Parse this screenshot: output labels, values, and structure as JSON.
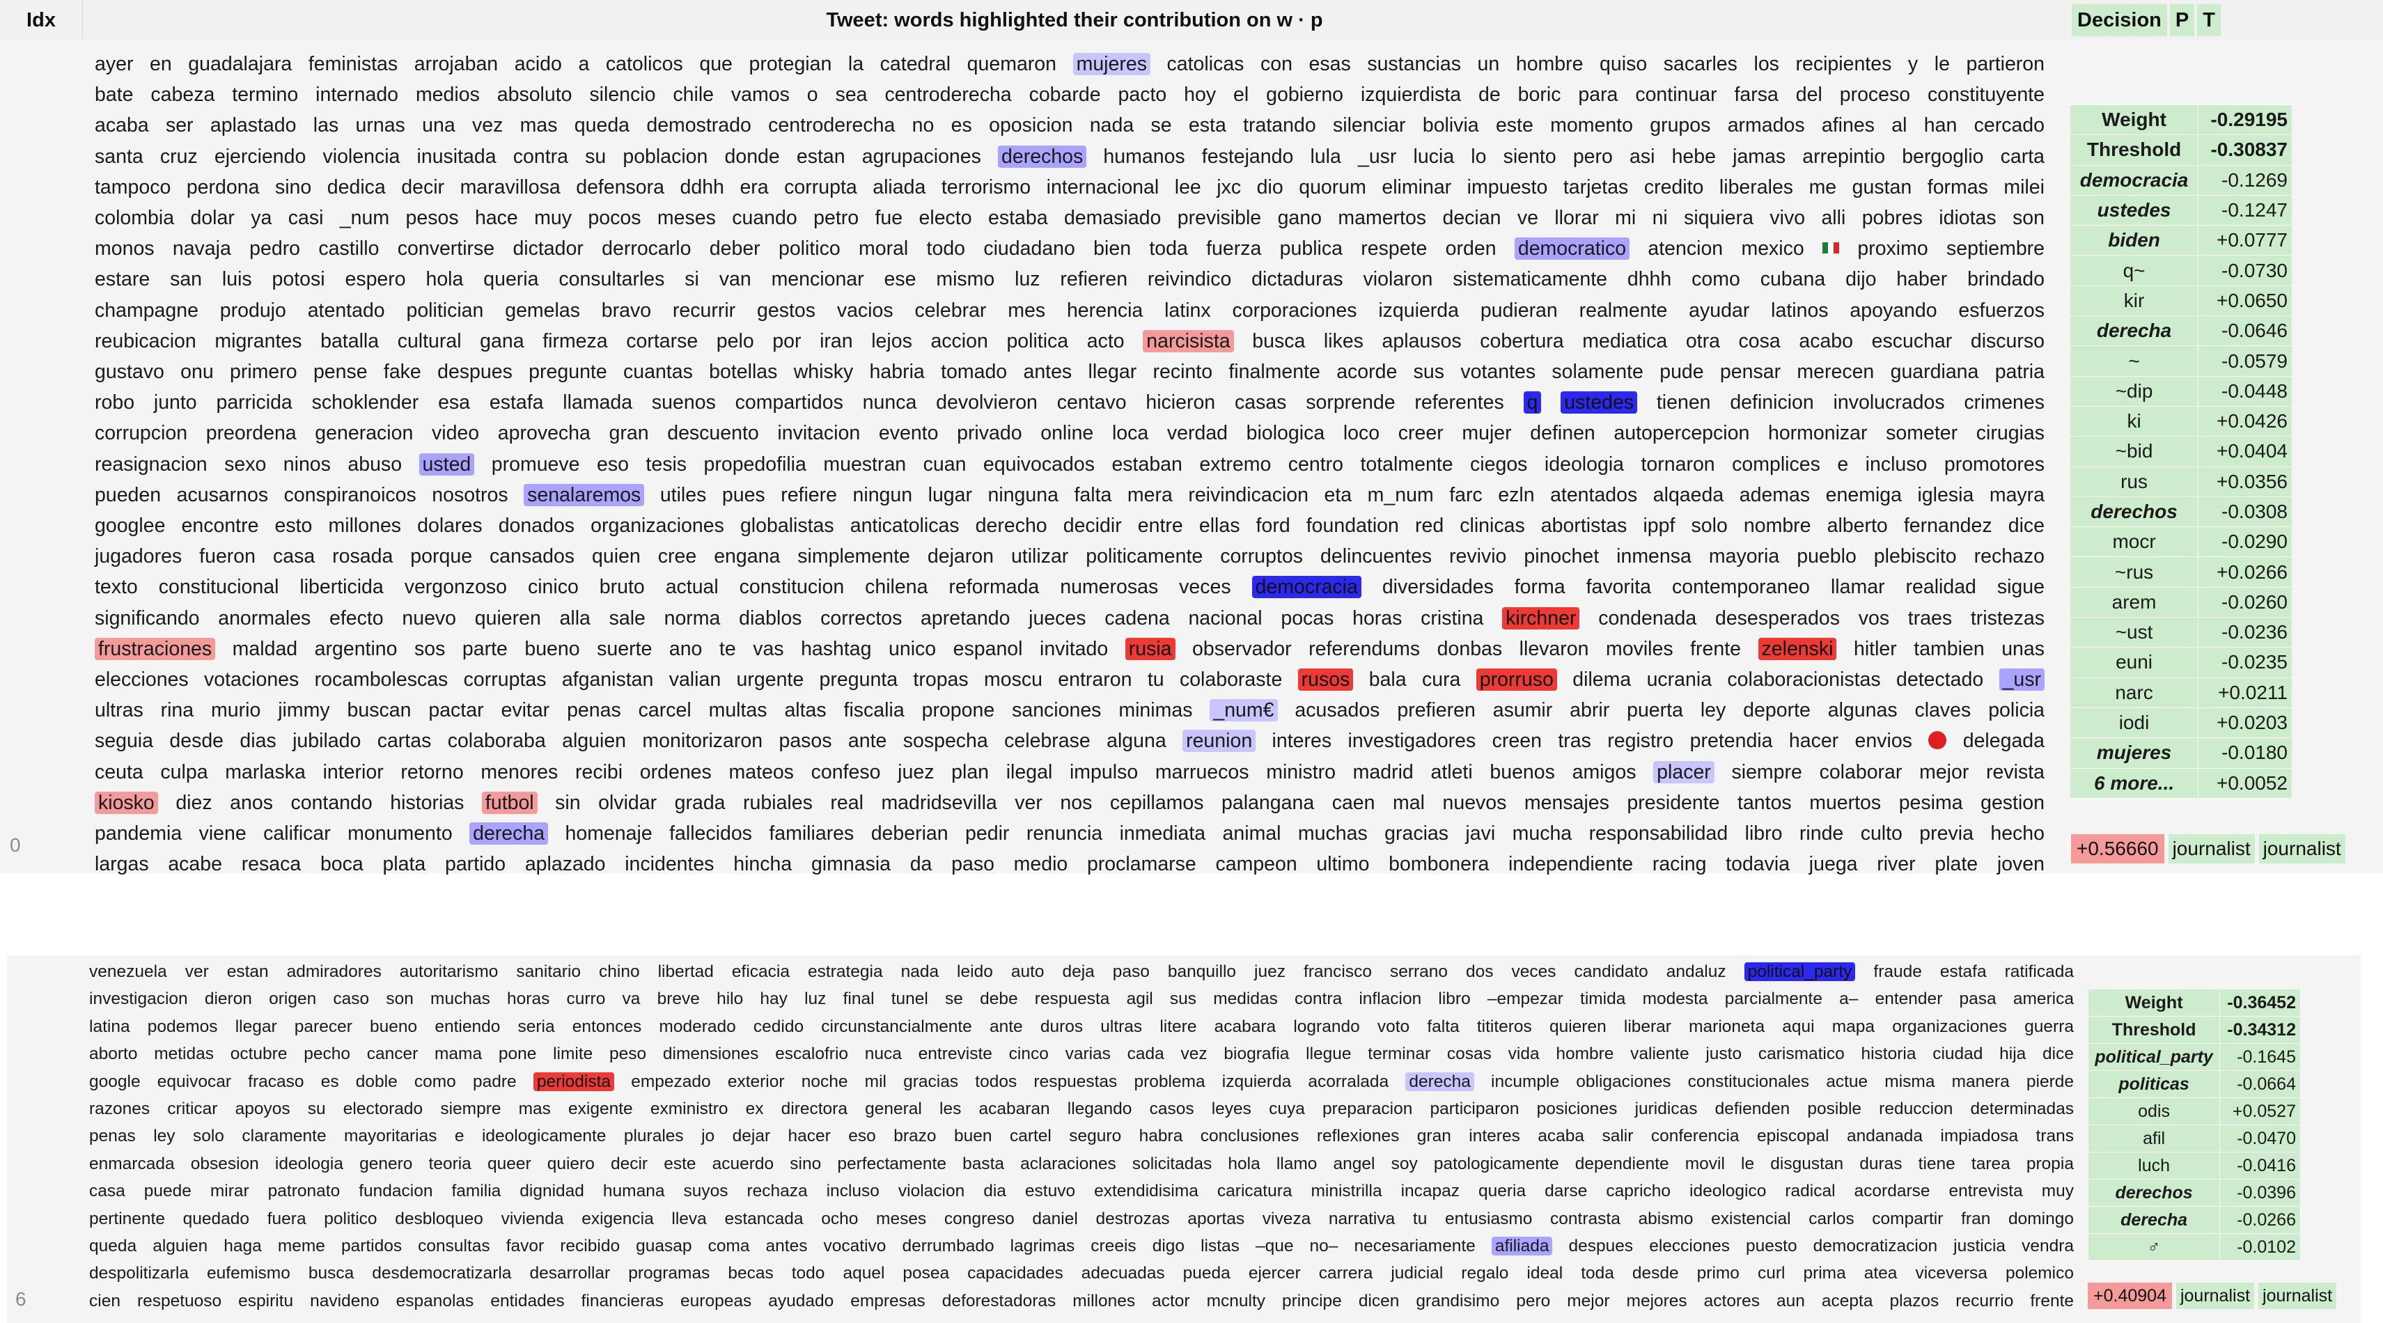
{
  "header": {
    "idx": "Idx",
    "title": "Tweet: words highlighted their contribution on w · p",
    "decision": "Decision",
    "p": "P",
    "t": "T"
  },
  "rows": [
    {
      "idx": "0",
      "lines": [
        [
          [
            "ayer en guadalajara feministas arrojaban acido a catolicos que protegian la catedral quemaron ",
            ""
          ],
          [
            "mujeres",
            "neg1"
          ],
          [
            " catolicas con esas sustancias un hombre quiso sacarles los recipientes y le partieron",
            ""
          ]
        ],
        [
          [
            "bate cabeza termino internado medios absoluto silencio chile vamos o sea centroderecha cobarde pacto hoy el gobierno izquierdista de boric para continuar farsa del proceso constituyente",
            ""
          ]
        ],
        [
          [
            "acaba ser aplastado las urnas una vez mas queda demostrado centroderecha no es oposicion nada se esta tratando silenciar bolivia este momento grupos armados afines al han cercado",
            ""
          ]
        ],
        [
          [
            "santa cruz ejerciendo violencia inusitada contra su poblacion donde estan agrupaciones ",
            ""
          ],
          [
            "derechos",
            "neg2"
          ],
          [
            " humanos festejando lula _usr lucia lo siento pero asi hebe jamas arrepintio bergoglio carta",
            ""
          ]
        ],
        [
          [
            "tampoco perdona sino dedica decir maravillosa defensora ddhh era corrupta aliada terrorismo internacional lee jxc dio quorum eliminar impuesto tarjetas credito liberales me gustan formas milei",
            ""
          ]
        ],
        [
          [
            "colombia dolar ya casi _num pesos hace muy pocos meses cuando petro fue electo estaba demasiado previsible gano mamertos decian ve llorar mi ni siquiera vivo alli pobres idiotas son",
            ""
          ]
        ],
        [
          [
            "monos navaja pedro castillo convertirse dictador derrocarlo deber politico moral todo ciudadano bien toda fuerza publica respete orden ",
            ""
          ],
          [
            "democratico",
            "neg2"
          ],
          [
            " atencion mexico ",
            ""
          ],
          [
            "",
            "flag"
          ],
          [
            " proximo septiembre",
            ""
          ]
        ],
        [
          [
            "estare san luis potosi espero hola queria consultarles si van mencionar ese mismo luz refieren reivindico dictaduras violaron sistematicamente dhhh como cubana dijo haber brindado",
            ""
          ]
        ],
        [
          [
            "champagne produjo atentado politician gemelas bravo recurrir gestos vacios celebrar mes herencia latinx corporaciones izquierda pudieran realmente ayudar latinos apoyando esfuerzos",
            ""
          ]
        ],
        [
          [
            "reubicacion migrantes batalla cultural gana firmeza cortarse pelo por iran lejos accion politica acto ",
            ""
          ],
          [
            "narcisista",
            "pos2"
          ],
          [
            " busca likes aplausos cobertura mediatica otra cosa acabo escuchar discurso",
            ""
          ]
        ],
        [
          [
            "gustavo onu primero pense fake despues pregunte cuantas botellas whisky habria tomado antes llegar recinto finalmente acorde sus votantes solamente pude pensar merecen guardiana patria",
            ""
          ]
        ],
        [
          [
            "robo junto parricida schoklender esa estafa llamada suenos compartidos nunca devolvieron centavo hicieron casas sorprende referentes ",
            ""
          ],
          [
            "q",
            "neg3"
          ],
          [
            " ",
            ""
          ],
          [
            "ustedes",
            "neg3"
          ],
          [
            " tienen definicion involucrados crimenes",
            ""
          ]
        ],
        [
          [
            "corrupcion preordena generacion video aprovecha gran descuento invitacion evento privado online loca verdad biologica loco creer mujer definen autopercepcion hormonizar someter cirugias",
            ""
          ]
        ],
        [
          [
            "reasignacion sexo ninos abuso ",
            ""
          ],
          [
            "usted",
            "neg2"
          ],
          [
            " promueve eso tesis propedofilia muestran cuan equivocados estaban extremo centro totalmente ciegos ideologia tornaron complices e incluso promotores",
            ""
          ]
        ],
        [
          [
            "pueden acusarnos conspiranoicos nosotros ",
            ""
          ],
          [
            "senalaremos",
            "neg2"
          ],
          [
            " utiles pues refiere ningun lugar ninguna falta mera reivindicacion eta m_num farc ezln atentados alqaeda ademas enemiga iglesia mayra",
            ""
          ]
        ],
        [
          [
            "googlee encontre esto millones dolares donados organizaciones globalistas anticatolicas derecho decidir entre ellas ford foundation red clinicas abortistas ippf solo nombre alberto fernandez dice",
            ""
          ]
        ],
        [
          [
            "jugadores fueron casa rosada porque cansados quien cree engana simplemente dejaron utilizar politicamente corruptos delincuentes revivio pinochet inmensa mayoria pueblo plebiscito rechazo",
            ""
          ]
        ],
        [
          [
            "texto constitucional liberticida vergonzoso cinico bruto actual constitucion chilena reformada numerosas veces ",
            ""
          ],
          [
            "democracia",
            "neg3"
          ],
          [
            " diversidades forma favorita contemporaneo llamar realidad sigue",
            ""
          ]
        ],
        [
          [
            "significando anormales efecto nuevo quieren alla sale norma diablos correctos apretando jueces cadena nacional pocas horas cristina ",
            ""
          ],
          [
            "kirchner",
            "pos3"
          ],
          [
            " condenada desesperados vos traes tristezas",
            ""
          ]
        ],
        [
          [
            "",
            ""
          ],
          [
            "frustraciones",
            "pos2"
          ],
          [
            " maldad argentino sos parte bueno suerte ano te vas hashtag unico espanol invitado ",
            ""
          ],
          [
            "rusia",
            "pos3"
          ],
          [
            " observador referendums donbas llevaron moviles frente ",
            ""
          ],
          [
            "zelenski",
            "pos3"
          ],
          [
            " hitler tambien unas",
            ""
          ]
        ],
        [
          [
            "elecciones votaciones rocambolescas corruptas afganistan valian urgente pregunta tropas moscu entraron tu colaboraste ",
            ""
          ],
          [
            "rusos",
            "pos3"
          ],
          [
            " bala cura ",
            ""
          ],
          [
            "prorruso",
            "pos3"
          ],
          [
            " dilema ucrania colaboracionistas detectado ",
            ""
          ],
          [
            "_usr",
            "neg2"
          ]
        ],
        [
          [
            "ultras rina murio jimmy buscan pactar evitar penas carcel multas altas fiscalia propone sanciones minimas ",
            ""
          ],
          [
            "_num€",
            "neg1"
          ],
          [
            " acusados prefieren asumir abrir puerta ley deporte algunas claves policia",
            ""
          ]
        ],
        [
          [
            "seguia desde dias jubilado cartas colaboraba alguien monitorizaron pasos ante sospecha celebrase alguna ",
            ""
          ],
          [
            "reunion",
            "neg1"
          ],
          [
            " interes investigadores creen tras registro pretendia hacer envios ",
            ""
          ],
          [
            "",
            "dot"
          ],
          [
            " delegada",
            ""
          ]
        ],
        [
          [
            "ceuta culpa marlaska interior retorno menores recibi ordenes mateos confeso juez plan ilegal impulso marruecos ministro madrid atleti buenos amigos ",
            ""
          ],
          [
            "placer",
            "neg1"
          ],
          [
            " siempre colaborar mejor revista",
            ""
          ]
        ],
        [
          [
            "",
            ""
          ],
          [
            "kiosko",
            "pos2"
          ],
          [
            " diez anos contando historias ",
            ""
          ],
          [
            "futbol",
            "pos2"
          ],
          [
            " sin olvidar grada rubiales real madridsevilla ver nos cepillamos palangana caen mal nuevos mensajes presidente tantos muertos pesima gestion",
            ""
          ]
        ],
        [
          [
            "pandemia viene calificar monumento ",
            ""
          ],
          [
            "derecha",
            "neg2"
          ],
          [
            " homenaje fallecidos familiares deberian pedir renuncia inmediata animal muchas gracias javi mucha responsabilidad libro rinde culto previa hecho",
            ""
          ]
        ],
        [
          [
            "largas acabe resaca boca plata partido aplazado incidentes hincha gimnasia da paso medio proclamarse campeon ultimo bombonera independiente racing todavia juega river plate joven",
            ""
          ]
        ]
      ],
      "weights": [
        [
          "Weight",
          "-0.29195",
          "bold"
        ],
        [
          "Threshold",
          "-0.30837",
          "bold"
        ],
        [
          "democracia",
          "-0.1269",
          "ital"
        ],
        [
          "ustedes",
          "-0.1247",
          "ital"
        ],
        [
          "biden",
          "+0.0777",
          "ital"
        ],
        [
          "q~",
          "-0.0730",
          ""
        ],
        [
          "kir",
          "+0.0650",
          ""
        ],
        [
          "derecha",
          "-0.0646",
          "ital"
        ],
        [
          "~",
          "-0.0579",
          ""
        ],
        [
          "~dip",
          "-0.0448",
          ""
        ],
        [
          "ki",
          "+0.0426",
          ""
        ],
        [
          "~bid",
          "+0.0404",
          ""
        ],
        [
          "rus",
          "+0.0356",
          ""
        ],
        [
          "derechos",
          "-0.0308",
          "ital"
        ],
        [
          "mocr",
          "-0.0290",
          ""
        ],
        [
          "~rus",
          "+0.0266",
          ""
        ],
        [
          "arem",
          "-0.0260",
          ""
        ],
        [
          "~ust",
          "-0.0236",
          ""
        ],
        [
          "euni",
          "-0.0235",
          ""
        ],
        [
          "narc",
          "+0.0211",
          ""
        ],
        [
          "iodi",
          "+0.0203",
          ""
        ],
        [
          "mujeres",
          "-0.0180",
          "ital"
        ],
        [
          "6 more...",
          "+0.0052",
          "ital"
        ]
      ],
      "score": "+0.56660",
      "pred": "journalist",
      "truth": "journalist"
    },
    {
      "idx": "6",
      "lines": [
        [
          [
            "venezuela ver estan admiradores autoritarismo sanitario chino libertad eficacia estrategia nada leido auto deja paso banquillo juez francisco serrano dos veces candidato andaluz ",
            ""
          ],
          [
            "political_party",
            "neg3"
          ],
          [
            " fraude estafa ratificada",
            ""
          ]
        ],
        [
          [
            "investigacion dieron origen caso son muchas horas curro va breve hilo hay luz final tunel se debe respuesta agil sus medidas contra inflacion libro –empezar timida modesta parcialmente a– entender pasa america",
            ""
          ]
        ],
        [
          [
            "latina podemos llegar parecer bueno entiendo seria entonces moderado cedido circunstancialmente ante duros ultras litere acabara logrando voto falta tititeros quieren liberar marioneta aqui mapa organizaciones guerra",
            ""
          ]
        ],
        [
          [
            "aborto metidas octubre pecho cancer mama pone limite peso dimensiones escalofrio nuca entreviste cinco varias cada vez biografia llegue terminar cosas vida hombre valiente justo carismatico historia ciudad hija dice",
            ""
          ]
        ],
        [
          [
            "google equivocar fracaso es doble como padre ",
            ""
          ],
          [
            "periodista",
            "pos3"
          ],
          [
            " empezado exterior noche mil gracias todos respuestas problema izquierda acorralada ",
            ""
          ],
          [
            "derecha",
            "neg1"
          ],
          [
            " incumple obligaciones constitucionales actue misma manera pierde",
            ""
          ]
        ],
        [
          [
            "razones criticar apoyos su electorado siempre mas exigente exministro ex directora general les acabaran llegando casos leyes cuya preparacion participaron posiciones juridicas defienden posible reduccion determinadas",
            ""
          ]
        ],
        [
          [
            "penas ley solo claramente mayoritarias e ideologicamente plurales jo dejar hacer eso brazo buen cartel seguro habra conclusiones reflexiones gran interes acaba salir conferencia episcopal andanada impiadosa trans",
            ""
          ]
        ],
        [
          [
            "enmarcada obsesion ideologia genero teoria queer quiero decir este acuerdo sino perfectamente basta aclaraciones solicitadas hola llamo angel soy patologicamente dependiente movil le disgustan duras tiene tarea propia",
            ""
          ]
        ],
        [
          [
            "casa puede mirar patronato fundacion familia dignidad humana suyos rechaza incluso violacion dia estuvo extendidisima caricatura ministrilla incapaz queria darse capricho ideologico radical acordarse entrevista muy",
            ""
          ]
        ],
        [
          [
            "pertinente quedado fuera politico desbloqueo vivienda exigencia lleva estancada ocho meses congreso daniel destrozas aportas viveza narrativa tu entusiasmo contrasta abismo existencial carlos compartir fran domingo",
            ""
          ]
        ],
        [
          [
            "queda alguien haga meme partidos consultas favor recibido guasap coma antes vocativo derrumbado lagrimas creeis digo listas –que no– necesariamente ",
            ""
          ],
          [
            "afiliada",
            "neg2"
          ],
          [
            " despues elecciones puesto democratizacion justicia vendra",
            ""
          ]
        ],
        [
          [
            "despolitizarla eufemismo busca desdemocratizarla desarrollar programas becas todo aquel posea capacidades adecuadas pueda ejercer carrera judicial regalo ideal toda desde primo curl prima atea viceversa polemico",
            ""
          ]
        ],
        [
          [
            "cien respetuoso espiritu navideno espanolas entidades financieras europeas ayudado empresas deforestadoras millones actor mcnulty principe dicen grandisimo pero mejor mejores actores aun acepta plazos recurrio frente",
            ""
          ]
        ]
      ],
      "weights": [
        [
          "Weight",
          "-0.36452",
          "bold"
        ],
        [
          "Threshold",
          "-0.34312",
          "bold"
        ],
        [
          "political_party",
          "-0.1645",
          "ital"
        ],
        [
          "politicas",
          "-0.0664",
          "ital"
        ],
        [
          "odis",
          "+0.0527",
          ""
        ],
        [
          "afil",
          "-0.0470",
          ""
        ],
        [
          "luch",
          "-0.0416",
          ""
        ],
        [
          "derechos",
          "-0.0396",
          "ital"
        ],
        [
          "derecha",
          "-0.0266",
          "ital"
        ],
        [
          "♂",
          "-0.0102",
          ""
        ]
      ],
      "score": "+0.40904",
      "pred": "journalist",
      "truth": "journalist"
    }
  ]
}
